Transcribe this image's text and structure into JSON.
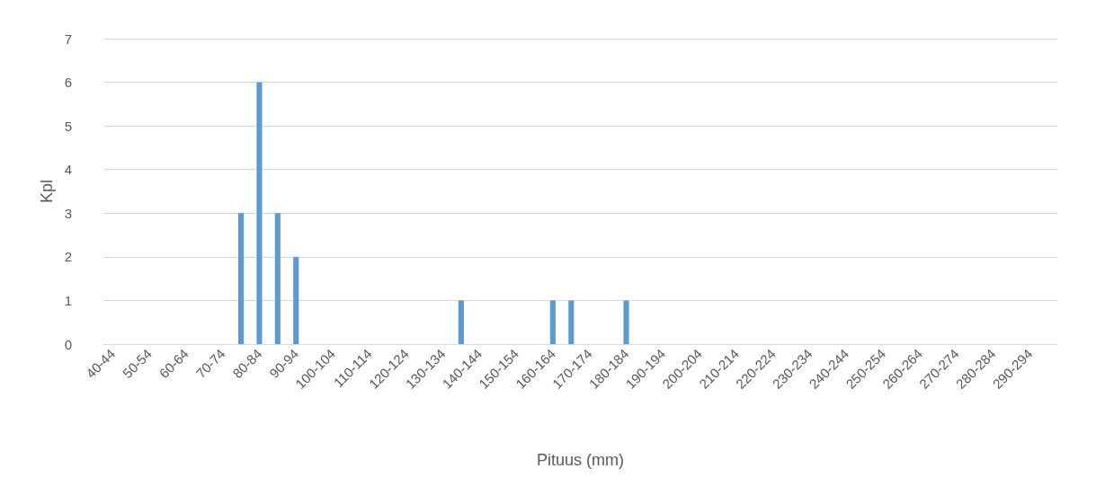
{
  "chart_data": {
    "type": "bar",
    "xlabel": "Pituus (mm)",
    "ylabel": "Kpl",
    "categories": [
      "40-44",
      null,
      "50-54",
      null,
      "60-64",
      null,
      "70-74",
      null,
      "80-84",
      null,
      "90-94",
      null,
      "100-104",
      null,
      "110-114",
      null,
      "120-124",
      null,
      "130-134",
      null,
      "140-144",
      null,
      "150-154",
      null,
      "160-164",
      null,
      "170-174",
      null,
      "180-184",
      null,
      "190-194",
      null,
      "200-204",
      null,
      "210-214",
      null,
      "220-224",
      null,
      "230-234",
      null,
      "240-244",
      null,
      "250-254",
      null,
      "260-264",
      null,
      "270-274",
      null,
      "280-284",
      null,
      "290-294",
      null
    ],
    "values": [
      0,
      0,
      0,
      0,
      0,
      0,
      0,
      3,
      6,
      3,
      2,
      0,
      0,
      0,
      0,
      0,
      0,
      0,
      0,
      1,
      0,
      0,
      0,
      0,
      1,
      1,
      0,
      0,
      1,
      0,
      0,
      0,
      0,
      0,
      0,
      0,
      0,
      0,
      0,
      0,
      0,
      0,
      0,
      0,
      0,
      0,
      0,
      0,
      0,
      0,
      0,
      0
    ],
    "color": "#5b9bd5",
    "ylim": [
      0,
      7
    ],
    "yticks": [
      0,
      1,
      2,
      3,
      4,
      5,
      6,
      7
    ],
    "grid": "y"
  }
}
